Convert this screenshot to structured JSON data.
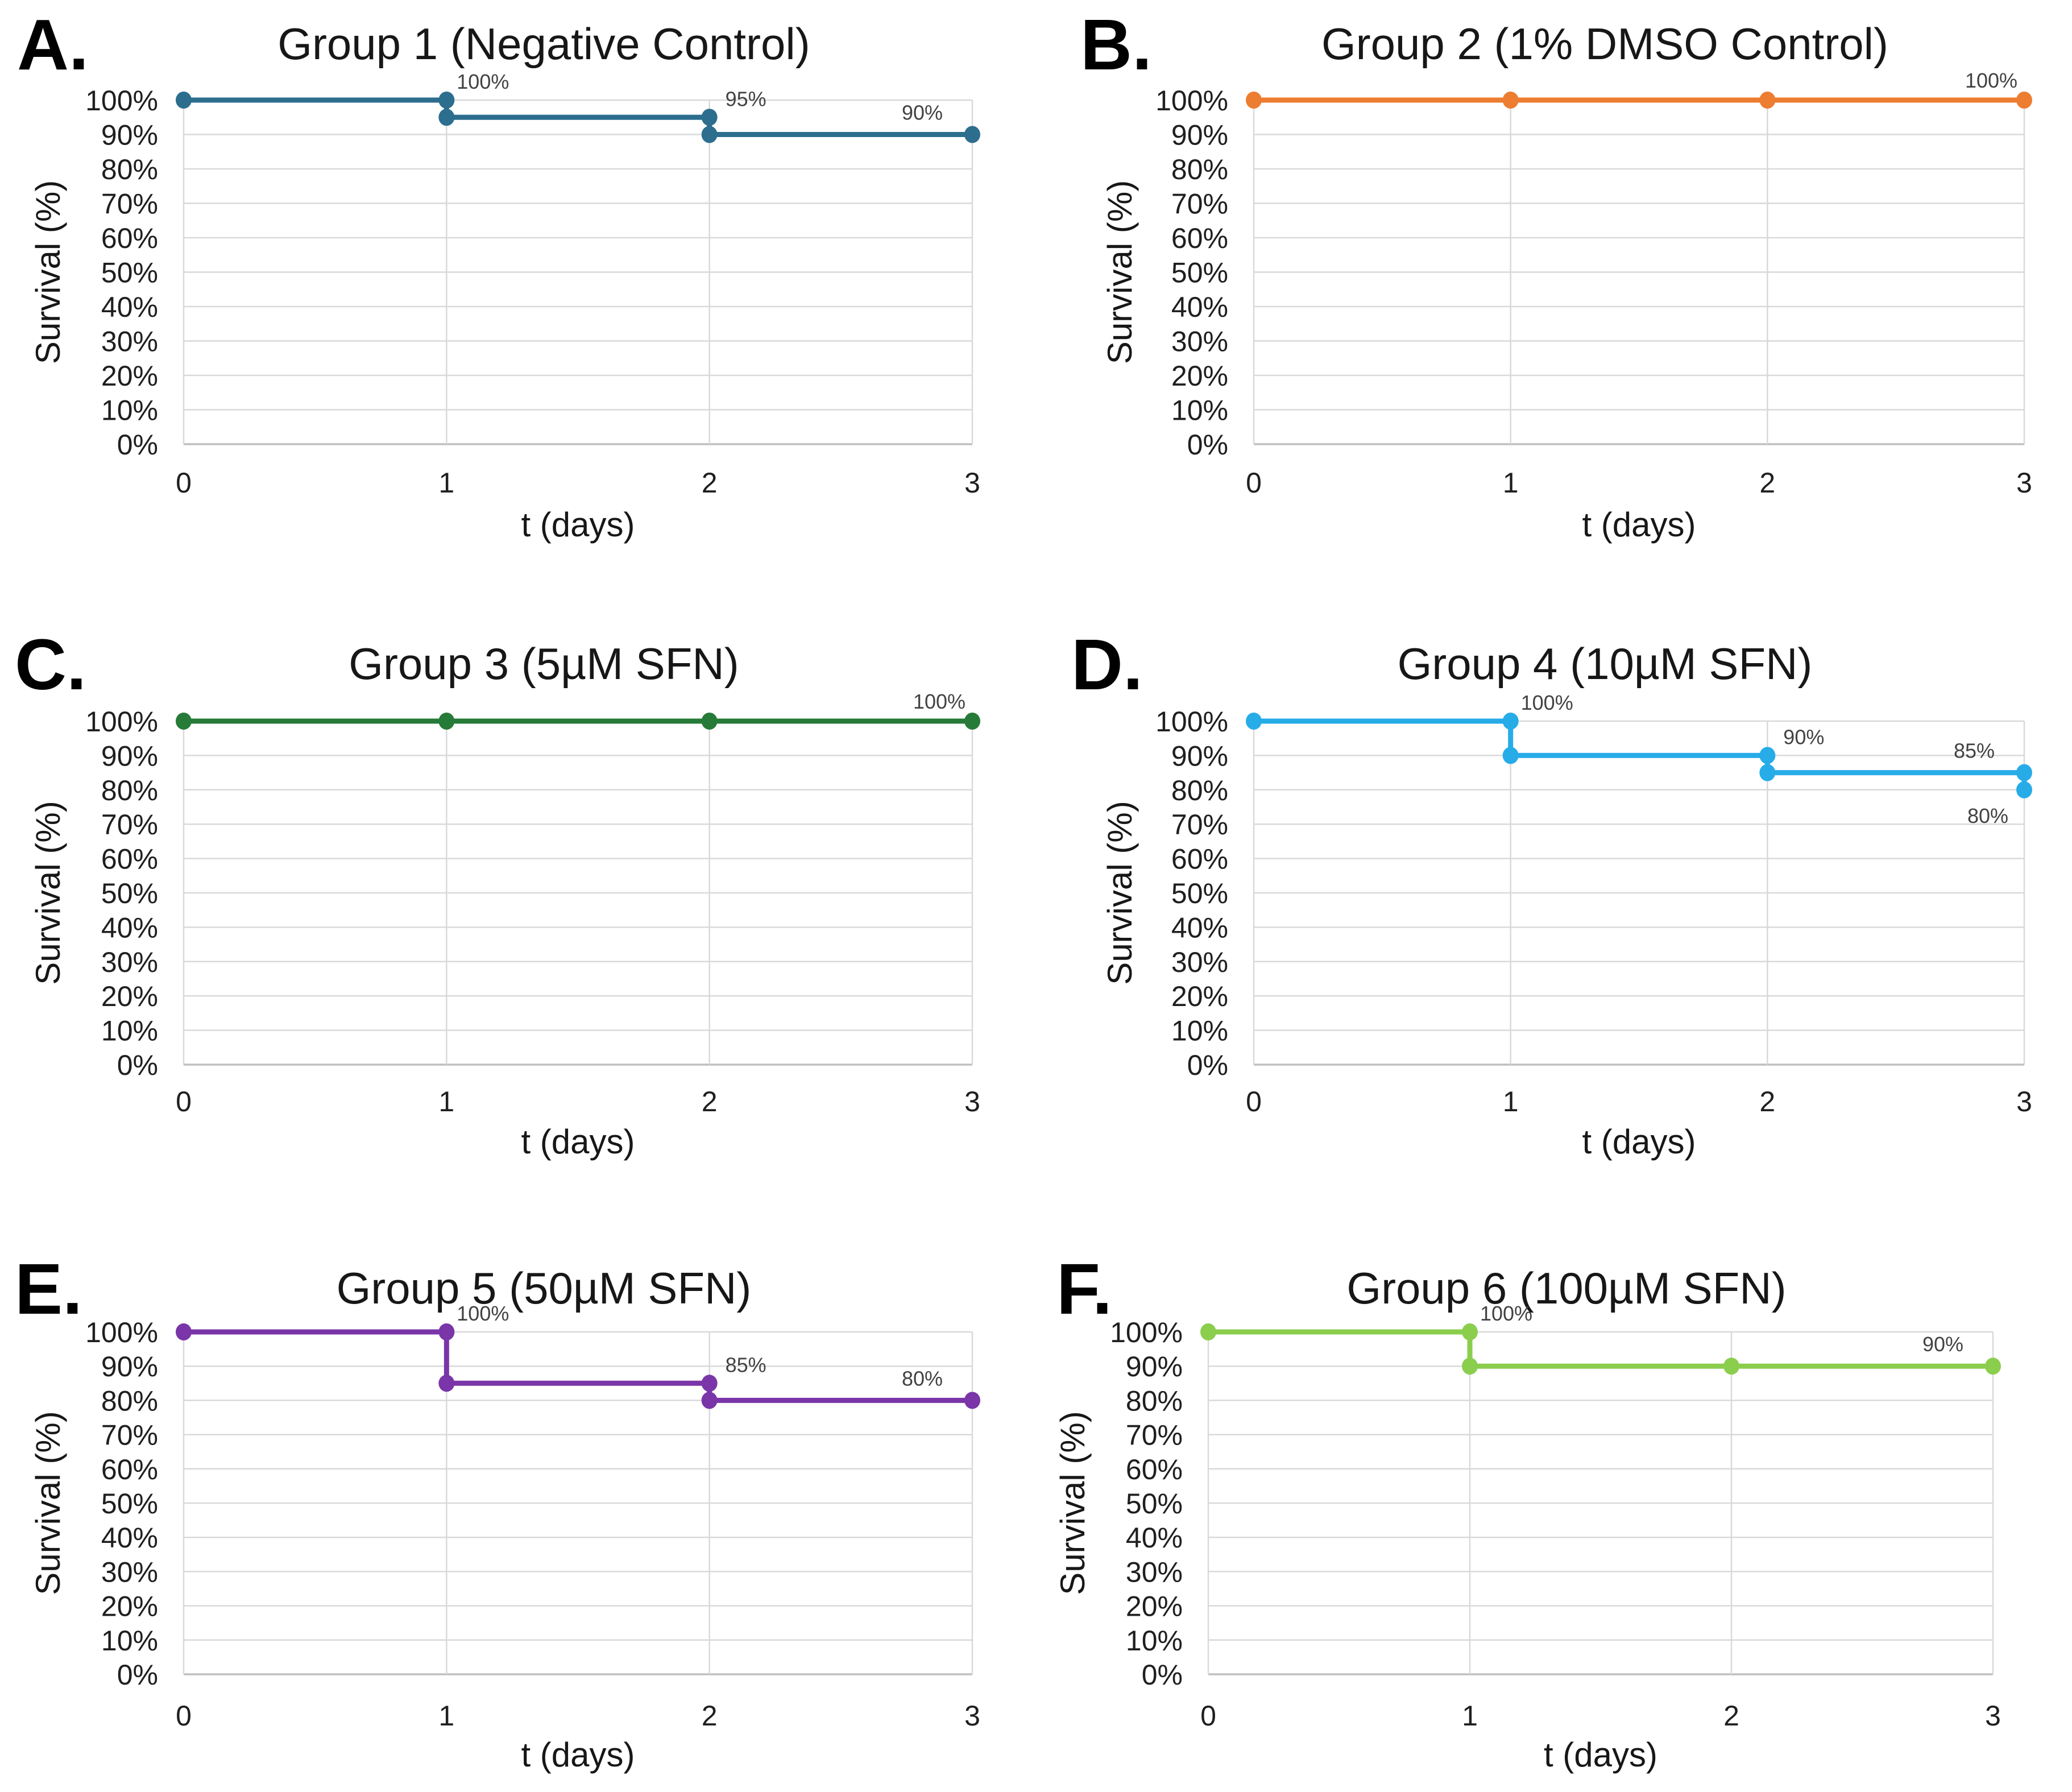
{
  "figure": {
    "background": "#ffffff",
    "description": "Six Kaplan-Meier style zebrafish survival step charts, panels A-F"
  },
  "axes": {
    "xlabel": "t (days)",
    "ylabel": "Survival (%)",
    "x_ticks": [
      "0",
      "1",
      "2",
      "3"
    ],
    "y_ticks": [
      "0%",
      "10%",
      "20%",
      "30%",
      "40%",
      "50%",
      "60%",
      "70%",
      "80%",
      "90%",
      "100%"
    ],
    "xlim": [
      0,
      3
    ],
    "ylim": [
      0,
      100
    ],
    "grid": true,
    "legend": "none"
  },
  "chart_data": [
    {
      "type": "line",
      "panel_letter": "A.",
      "title": "Group 1 (Negative Control)",
      "color": "#2D6E8E",
      "end_survival_by_day": [
        100,
        95,
        90,
        90
      ],
      "step_points": [
        [
          0,
          100
        ],
        [
          1,
          100
        ],
        [
          1,
          95
        ],
        [
          2,
          95
        ],
        [
          2,
          90
        ],
        [
          3,
          90
        ]
      ],
      "annotations": [
        {
          "text": "100%",
          "x": 1,
          "y": 100,
          "placement": "above-right"
        },
        {
          "text": "95%",
          "x": 2,
          "y": 95,
          "placement": "above-right"
        },
        {
          "text": "90%",
          "x": 3,
          "y": 90,
          "placement": "above-left"
        }
      ]
    },
    {
      "type": "line",
      "panel_letter": "B.",
      "title": "Group 2 (1% DMSO Control)",
      "color": "#ED7D31",
      "end_survival_by_day": [
        100,
        100,
        100,
        100
      ],
      "step_points": [
        [
          0,
          100
        ],
        [
          1,
          100
        ],
        [
          2,
          100
        ],
        [
          3,
          100
        ]
      ],
      "annotations": [
        {
          "text": "100%",
          "x": 3,
          "y": 100,
          "placement": "above-end"
        }
      ]
    },
    {
      "type": "line",
      "panel_letter": "C.",
      "title": "Group 3 (5µM SFN)",
      "color": "#277B38",
      "end_survival_by_day": [
        100,
        100,
        100,
        100
      ],
      "step_points": [
        [
          0,
          100
        ],
        [
          1,
          100
        ],
        [
          2,
          100
        ],
        [
          3,
          100
        ]
      ],
      "annotations": [
        {
          "text": "100%",
          "x": 3,
          "y": 100,
          "placement": "above-end"
        }
      ]
    },
    {
      "type": "line",
      "panel_letter": "D.",
      "title": "Group 4 (10µM SFN)",
      "color": "#27ACE8",
      "end_survival_by_day": [
        100,
        90,
        85,
        80
      ],
      "step_points": [
        [
          0,
          100
        ],
        [
          1,
          100
        ],
        [
          1,
          90
        ],
        [
          2,
          90
        ],
        [
          2,
          85
        ],
        [
          3,
          85
        ],
        [
          3,
          80
        ]
      ],
      "annotations": [
        {
          "text": "100%",
          "x": 1,
          "y": 100,
          "placement": "above-right"
        },
        {
          "text": "90%",
          "x": 2,
          "y": 90,
          "placement": "above-right"
        },
        {
          "text": "85%",
          "x": 3,
          "y": 85,
          "placement": "above-left"
        },
        {
          "text": "80%",
          "x": 3,
          "y": 80,
          "placement": "below-left"
        }
      ]
    },
    {
      "type": "line",
      "panel_letter": "E.",
      "title": "Group 5 (50µM SFN)",
      "color": "#7A35A8",
      "end_survival_by_day": [
        100,
        85,
        80,
        80
      ],
      "step_points": [
        [
          0,
          100
        ],
        [
          1,
          100
        ],
        [
          1,
          85
        ],
        [
          2,
          85
        ],
        [
          2,
          80
        ],
        [
          3,
          80
        ]
      ],
      "annotations": [
        {
          "text": "100%",
          "x": 1,
          "y": 100,
          "placement": "above-right"
        },
        {
          "text": "85%",
          "x": 2,
          "y": 85,
          "placement": "above-right"
        },
        {
          "text": "80%",
          "x": 3,
          "y": 80,
          "placement": "above-left"
        }
      ]
    },
    {
      "type": "line",
      "panel_letter": "F.",
      "title": "Group 6 (100µM SFN)",
      "color": "#8BCE4E",
      "end_survival_by_day": [
        100,
        90,
        90,
        90
      ],
      "step_points": [
        [
          0,
          100
        ],
        [
          1,
          100
        ],
        [
          1,
          90
        ],
        [
          2,
          90
        ],
        [
          3,
          90
        ]
      ],
      "annotations": [
        {
          "text": "100%",
          "x": 1,
          "y": 100,
          "placement": "above-right"
        },
        {
          "text": "90%",
          "x": 3,
          "y": 90,
          "placement": "above-left"
        }
      ]
    }
  ]
}
